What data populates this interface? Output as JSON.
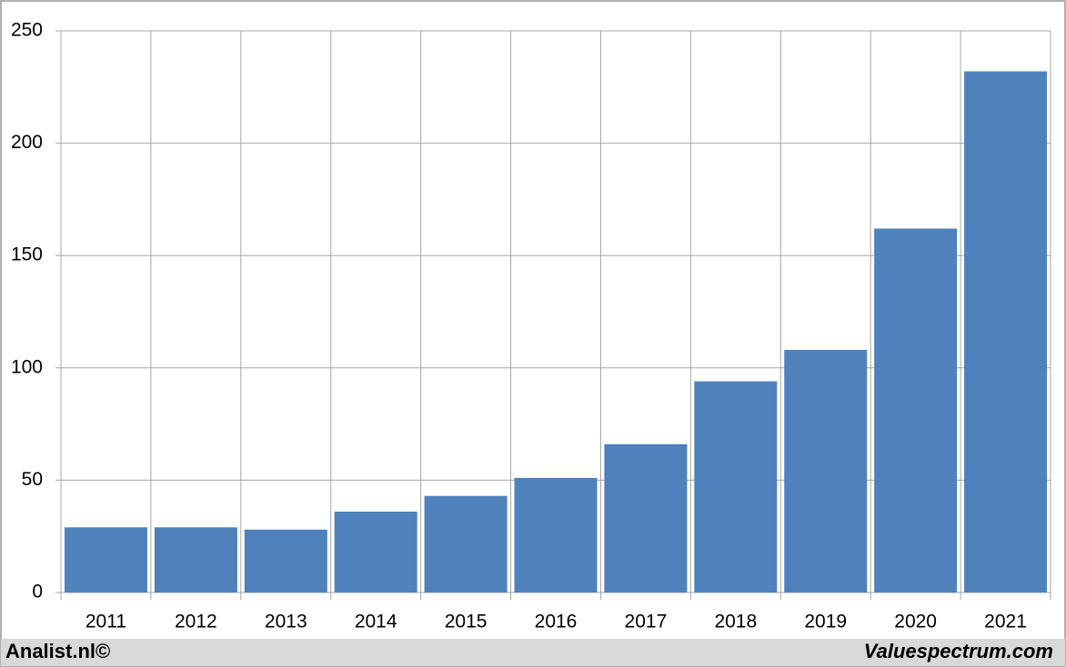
{
  "chart_data": {
    "type": "bar",
    "categories": [
      "2011",
      "2012",
      "2013",
      "2014",
      "2015",
      "2016",
      "2017",
      "2018",
      "2019",
      "2020",
      "2021"
    ],
    "values": [
      29,
      29,
      28,
      36,
      43,
      51,
      66,
      94,
      108,
      162,
      232
    ],
    "color": "#4f81bd",
    "ylim": [
      0,
      250
    ],
    "yticks": [
      0,
      50,
      100,
      150,
      200,
      250
    ],
    "grid": true,
    "source_left": "Analist.nl©",
    "source_right": "Valuespectrum.com"
  }
}
